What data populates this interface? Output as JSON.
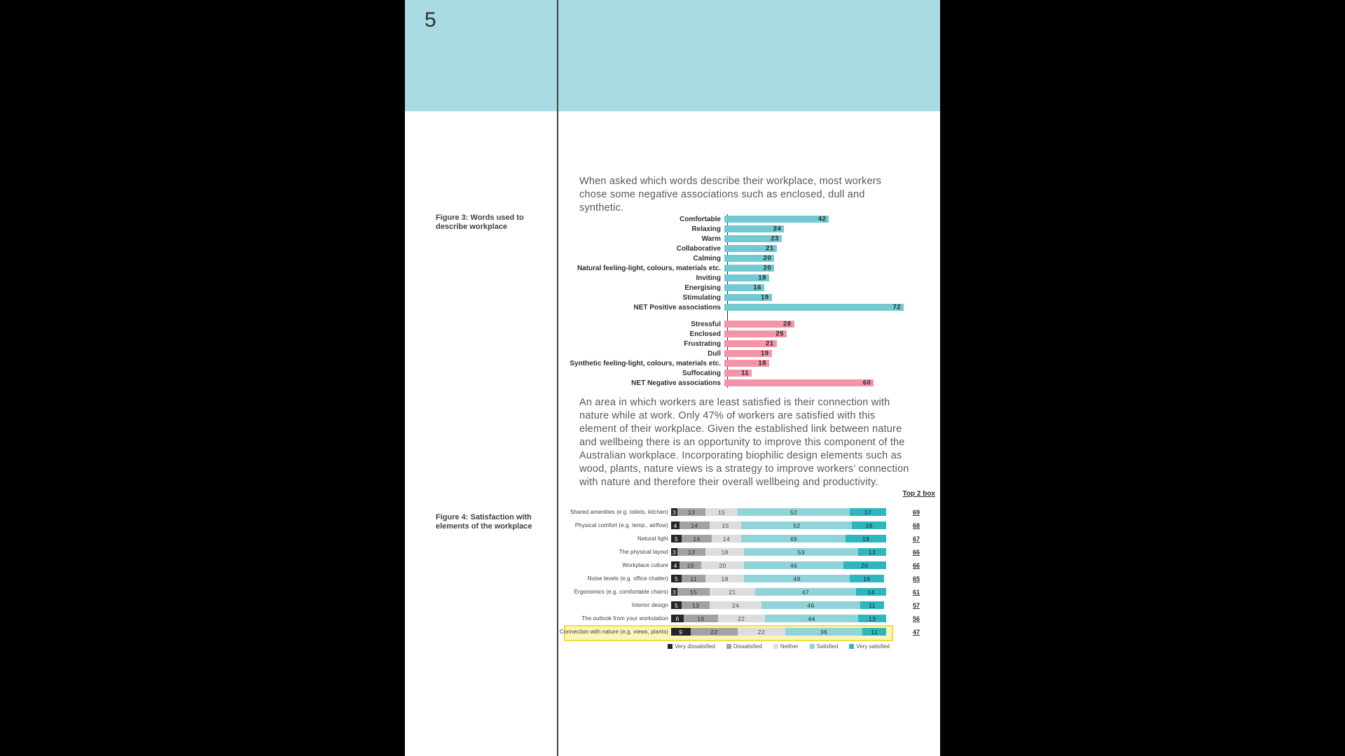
{
  "page": {
    "number": "5"
  },
  "colors": {
    "header_band": "#a8dce2",
    "page_background": "#ffffff",
    "surround": "#000000",
    "divider": "#404040",
    "fig3_positive": "#72c9d1",
    "fig3_negative": "#f394a8",
    "highlight_fill": "#fbf5bd",
    "highlight_border": "#efdf3c",
    "body_text": "#57585b"
  },
  "intro_text": "When asked which words describe their workplace, most workers chose some negative associations such as enclosed, dull and synthetic.",
  "body_text": "An area in which workers are least satisfied is their connection with nature while at work. Only 47% of workers are satisfied with this element of their workplace. Given the established link between nature and wellbeing there is an opportunity to improve this component of the Australian workplace. Incorporating biophilic design elements such as wood, plants, nature views is a strategy to improve workers’ connection with nature and therefore their overall wellbeing and productivity.",
  "figure3": {
    "caption": "Figure 3: Words used to describe workplace"
  },
  "figure4": {
    "caption": "Figure 4: Satisfaction with elements of the workplace",
    "top2box_header": "Top 2 box"
  },
  "chart_data": [
    {
      "id": "fig3",
      "type": "bar",
      "orientation": "horizontal",
      "title": "Figure 3: Words used to describe workplace",
      "unit": "percent",
      "xlim": [
        0,
        80
      ],
      "value_labels": "inside-end",
      "groups": [
        {
          "name": "positive",
          "color": "#72c9d1",
          "items": [
            [
              "Comfortable",
              42
            ],
            [
              "Relaxing",
              24
            ],
            [
              "Warm",
              23
            ],
            [
              "Collaborative",
              21
            ],
            [
              "Calming",
              20
            ],
            [
              "Natural feeling-light, colours, materials etc.",
              20
            ],
            [
              "Inviting",
              18
            ],
            [
              "Energising",
              16
            ],
            [
              "Stimulating",
              19
            ],
            [
              "NET Positive associations",
              72
            ]
          ]
        },
        {
          "name": "negative",
          "color": "#f394a8",
          "items": [
            [
              "Stressful",
              28
            ],
            [
              "Enclosed",
              25
            ],
            [
              "Frustrating",
              21
            ],
            [
              "Dull",
              19
            ],
            [
              "Synthetic feeling-light, colours, materials etc.",
              18
            ],
            [
              "Suffocating",
              11
            ],
            [
              "NET Negative associations",
              60
            ]
          ]
        }
      ]
    },
    {
      "id": "fig4",
      "type": "stacked-bar",
      "orientation": "horizontal",
      "title": "Figure 4: Satisfaction with elements of the workplace",
      "unit": "percent",
      "xlim": [
        0,
        100
      ],
      "legend_position": "bottom",
      "categories": [
        "Shared amenities (e.g. toilets, kitchen)",
        "Physical comfort (e.g. temp., airflow)",
        "Natural light",
        "The physical layout",
        "Workplace culture",
        "Noise levels (e.g. office chatter)",
        "Ergonomics (e.g. comfortable chairs)",
        "Interior design",
        "The outlook from your workstation",
        "Connection with nature (e.g. views, plants)"
      ],
      "series": [
        {
          "name": "Very dissatisfied",
          "color": "#252525",
          "text_color": "#ffffff",
          "values": [
            3,
            4,
            5,
            3,
            4,
            5,
            3,
            5,
            6,
            9
          ]
        },
        {
          "name": "Dissatisfied",
          "color": "#a2a2a2",
          "text_color": "#2e2e2e",
          "values": [
            13,
            14,
            14,
            13,
            10,
            11,
            15,
            13,
            16,
            22
          ]
        },
        {
          "name": "Neither",
          "color": "#dddddd",
          "text_color": "#4a4a4a",
          "values": [
            15,
            15,
            14,
            18,
            20,
            18,
            21,
            24,
            22,
            22
          ]
        },
        {
          "name": "Satisfied",
          "color": "#90d3d9",
          "text_color": "#2e2e2e",
          "values": [
            52,
            52,
            49,
            53,
            46,
            49,
            47,
            46,
            44,
            36
          ]
        },
        {
          "name": "Very satisfied",
          "color": "#2eb6bf",
          "text_color": "#1d1d1d",
          "values": [
            17,
            16,
            19,
            13,
            20,
            16,
            14,
            11,
            13,
            11
          ]
        }
      ],
      "top2box": [
        69,
        68,
        67,
        66,
        66,
        65,
        61,
        57,
        56,
        47
      ],
      "top2box_header": "Top 2 box",
      "highlighted_category": "Connection with nature (e.g. views, plants)"
    }
  ]
}
